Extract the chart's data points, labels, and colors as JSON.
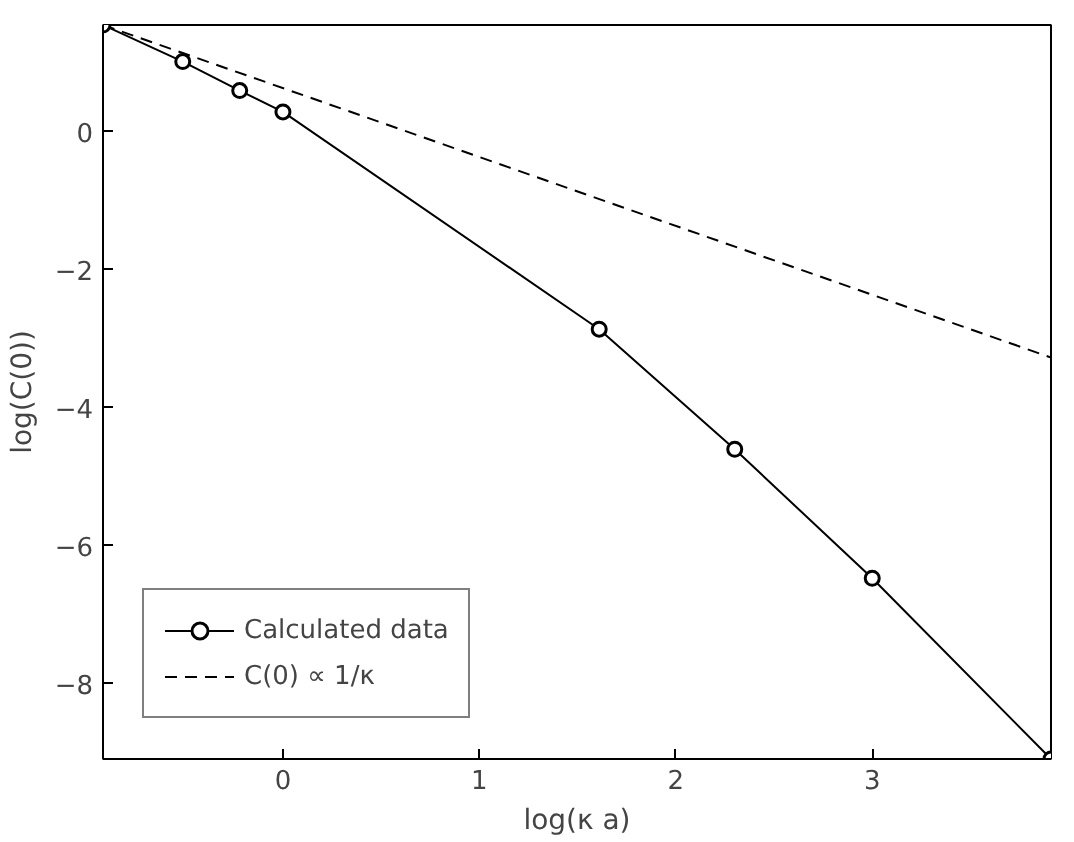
{
  "chart_data": {
    "type": "line",
    "xlabel": "log(κ a)",
    "ylabel": "log(C(0))",
    "xlim": [
      -0.916,
      3.91
    ],
    "ylim": [
      -9.09,
      1.55
    ],
    "xticks": [
      0,
      1,
      2,
      3
    ],
    "yticks": [
      -8,
      -6,
      -4,
      -2,
      0
    ],
    "grid": false,
    "legend": "bottom left",
    "series": [
      {
        "name": "Calculated data",
        "color": "#000000",
        "marker": "circle",
        "line_style": "solid",
        "x": [
          -0.916,
          -0.51,
          -0.22,
          0,
          1.61,
          2.3,
          3.0,
          3.91
        ],
        "values": [
          1.55,
          1.02,
          0.6,
          0.29,
          -2.86,
          -4.6,
          -6.47,
          -9.09
        ]
      },
      {
        "name": "C(0) ∝ 1/κ",
        "color": "#000000",
        "marker": "none",
        "line_style": "dashed",
        "x": [
          -0.916,
          3.91
        ],
        "values": [
          1.55,
          -3.27
        ]
      }
    ]
  }
}
